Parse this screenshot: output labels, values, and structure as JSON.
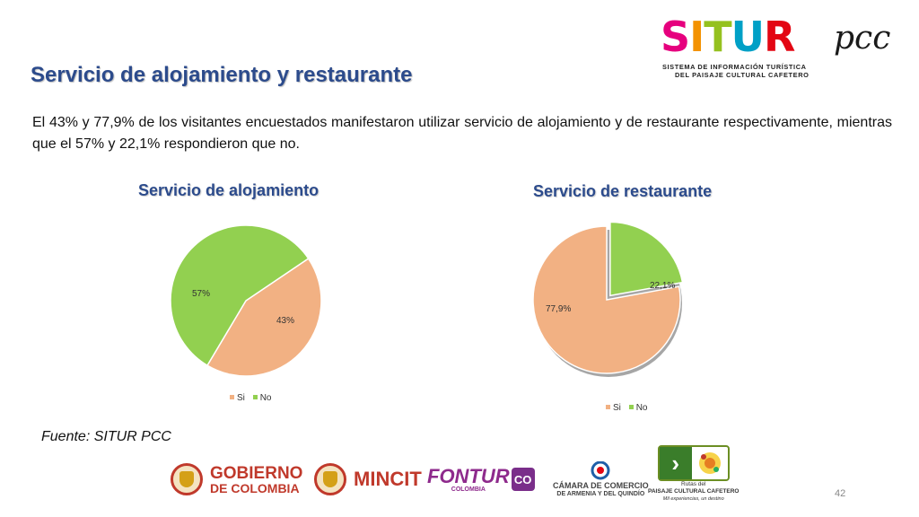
{
  "logo": {
    "letters": [
      {
        "ch": "S",
        "color": "#e6007e"
      },
      {
        "ch": "I",
        "color": "#f39200"
      },
      {
        "ch": "T",
        "color": "#95c11f"
      },
      {
        "ch": "U",
        "color": "#00a0c6"
      },
      {
        "ch": "R",
        "color": "#e30613"
      }
    ],
    "suffix": "pcc",
    "subtitle_line1": "SISTEMA DE INFORMACIÓN TURÍSTICA",
    "subtitle_line2": "DEL PAISAJE CULTURAL CAFETERO"
  },
  "title": "Servicio de alojamiento y restaurante",
  "paragraph": "El 43%  y 77,9% de los visitantes encuestados manifestaron utilizar servicio de alojamiento y de restaurante respectivamente, mientras que el 57% y 22,1% respondieron que no.",
  "colors": {
    "si": "#f2b183",
    "no": "#92d050",
    "title": "#2c4b8c"
  },
  "chart_data": [
    {
      "type": "pie",
      "title": "Servicio de alojamiento",
      "categories": [
        "Si",
        "No"
      ],
      "values": [
        43,
        57
      ],
      "labels": [
        "43%",
        "57%"
      ],
      "legend": "bottom"
    },
    {
      "type": "pie",
      "title": "Servicio de restaurante",
      "categories": [
        "Si",
        "No"
      ],
      "values": [
        77.9,
        22.1
      ],
      "labels": [
        "77,9%",
        "22,1%"
      ],
      "legend": "bottom"
    }
  ],
  "fuente": "Fuente: SITUR PCC",
  "page_number": "42",
  "footer_logos": {
    "gobierno_line1": "GOBIERNO",
    "gobierno_line2": "DE COLOMBIA",
    "mincit": "MINCIT",
    "fontur": "FONTUR",
    "fontur_sub": "COLOMBIA",
    "co": "CO",
    "camara_line1": "CÁMARA DE COMERCIO",
    "camara_line2": "DE ARMENIA Y DEL QUINDÍO",
    "rutas_line1": "Rutas del",
    "rutas_line2": "PAISAJE CULTURAL CAFETERO",
    "rutas_line3": "Mil experiencias, un destino"
  }
}
